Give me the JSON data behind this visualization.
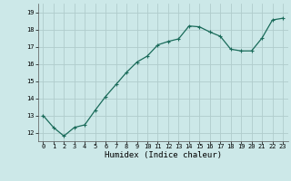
{
  "x": [
    0,
    1,
    2,
    3,
    4,
    5,
    6,
    7,
    8,
    9,
    10,
    11,
    12,
    13,
    14,
    15,
    16,
    17,
    18,
    19,
    20,
    21,
    22,
    23
  ],
  "y": [
    13.0,
    12.3,
    11.8,
    12.3,
    12.45,
    13.3,
    14.1,
    14.8,
    15.5,
    16.1,
    16.45,
    17.1,
    17.3,
    17.45,
    18.2,
    18.15,
    17.85,
    17.6,
    16.85,
    16.75,
    16.75,
    17.5,
    18.55,
    18.65
  ],
  "xlim": [
    -0.5,
    23.5
  ],
  "ylim": [
    11.5,
    19.5
  ],
  "yticks": [
    12,
    13,
    14,
    15,
    16,
    17,
    18,
    19
  ],
  "xticks": [
    0,
    1,
    2,
    3,
    4,
    5,
    6,
    7,
    8,
    9,
    10,
    11,
    12,
    13,
    14,
    15,
    16,
    17,
    18,
    19,
    20,
    21,
    22,
    23
  ],
  "xlabel": "Humidex (Indice chaleur)",
  "line_color": "#1a6b5a",
  "marker_color": "#1a6b5a",
  "bg_color": "#cce8e8",
  "grid_color": "#b0cccc",
  "marker": "+",
  "markersize": 3.0,
  "linewidth": 0.9,
  "tick_fontsize": 5.0,
  "xlabel_fontsize": 6.5
}
